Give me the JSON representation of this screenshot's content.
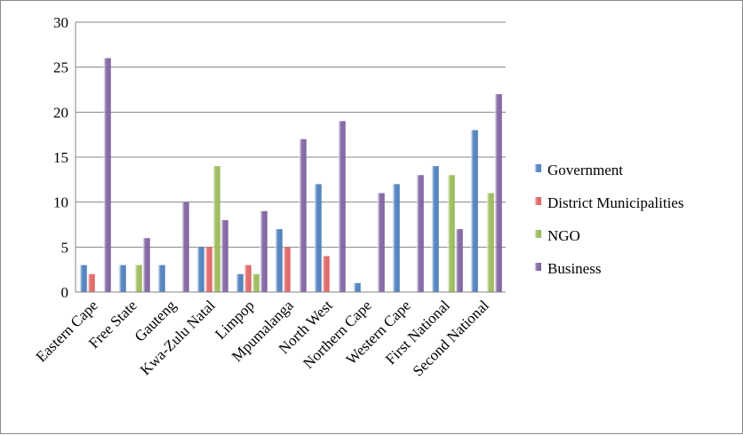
{
  "chart_data": {
    "type": "bar",
    "categories": [
      "Eastern Cape",
      "Free State",
      "Gauteng",
      "Kwa-Zulu Natal",
      "Limpop",
      "Mpumalanga",
      "North West",
      "Northern Cape",
      "Western Cape",
      "First National",
      "Second National"
    ],
    "series": [
      {
        "name": "Government",
        "color": "#4f81bd",
        "values": [
          3,
          3,
          3,
          5,
          2,
          7,
          12,
          1,
          12,
          14,
          18
        ]
      },
      {
        "name": "District Municipalities",
        "color": "#e06666",
        "values": [
          2,
          0,
          0,
          5,
          3,
          5,
          4,
          0,
          0,
          0,
          0
        ]
      },
      {
        "name": "NGO",
        "color": "#9bbb59",
        "values": [
          0,
          3,
          0,
          14,
          2,
          0,
          0,
          0,
          0,
          13,
          11
        ]
      },
      {
        "name": "Business",
        "color": "#8064a2",
        "values": [
          26,
          6,
          10,
          8,
          9,
          17,
          19,
          11,
          13,
          7,
          22
        ]
      }
    ],
    "ylim": [
      0,
      30
    ],
    "yticks": [
      0,
      5,
      10,
      15,
      20,
      25,
      30
    ],
    "grid": true,
    "legend_position": "right"
  }
}
